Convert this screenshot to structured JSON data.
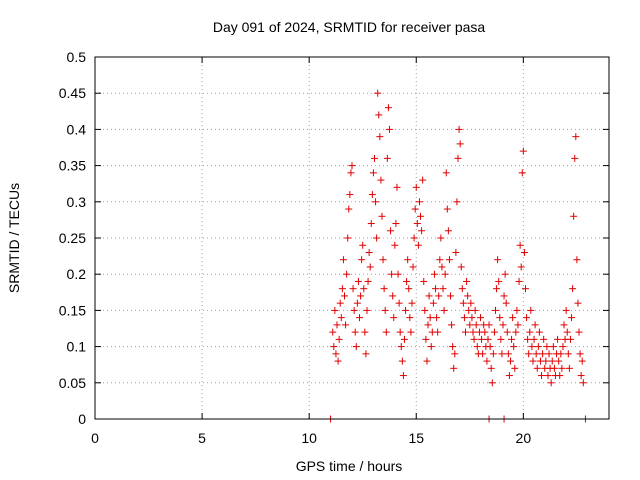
{
  "chart_data": {
    "type": "scatter",
    "title": "Day 091 of 2024, SRMTID for receiver pasa",
    "xlabel": "GPS time / hours",
    "ylabel": "SRMTID / TECUs",
    "xlim": [
      0,
      24
    ],
    "ylim": [
      0,
      0.5
    ],
    "xticks": [
      0,
      5,
      10,
      15,
      20
    ],
    "xtick_labels": [
      "0",
      "5",
      "10",
      "15",
      "20"
    ],
    "yticks": [
      0,
      0.05,
      0.1,
      0.15,
      0.2,
      0.25,
      0.3,
      0.35,
      0.4,
      0.45,
      0.5
    ],
    "ytick_labels": [
      "0",
      "0.05",
      "0.1",
      "0.15",
      "0.2",
      "0.25",
      "0.3",
      "0.35",
      "0.4",
      "0.45",
      "0.5"
    ],
    "grid": true,
    "marker": "+",
    "color": "#e00000",
    "series": [
      {
        "name": "SRMTID",
        "points": [
          [
            11.0,
            0.0
          ],
          [
            18.4,
            0.0
          ],
          [
            19.1,
            0.0
          ],
          [
            22.9,
            0.0
          ],
          [
            11.1,
            0.12
          ],
          [
            11.15,
            0.1
          ],
          [
            11.2,
            0.15
          ],
          [
            11.25,
            0.09
          ],
          [
            11.3,
            0.13
          ],
          [
            11.35,
            0.08
          ],
          [
            11.4,
            0.11
          ],
          [
            11.45,
            0.16
          ],
          [
            11.5,
            0.14
          ],
          [
            11.55,
            0.18
          ],
          [
            11.6,
            0.22
          ],
          [
            11.65,
            0.17
          ],
          [
            11.7,
            0.13
          ],
          [
            11.75,
            0.2
          ],
          [
            11.8,
            0.25
          ],
          [
            11.85,
            0.29
          ],
          [
            11.9,
            0.31
          ],
          [
            11.95,
            0.34
          ],
          [
            12.0,
            0.35
          ],
          [
            12.05,
            0.18
          ],
          [
            12.1,
            0.15
          ],
          [
            12.15,
            0.12
          ],
          [
            12.2,
            0.1
          ],
          [
            12.25,
            0.16
          ],
          [
            12.3,
            0.19
          ],
          [
            12.35,
            0.14
          ],
          [
            12.4,
            0.17
          ],
          [
            12.45,
            0.22
          ],
          [
            12.5,
            0.24
          ],
          [
            12.55,
            0.18
          ],
          [
            12.6,
            0.12
          ],
          [
            12.65,
            0.09
          ],
          [
            12.7,
            0.15
          ],
          [
            12.75,
            0.19
          ],
          [
            12.8,
            0.23
          ],
          [
            12.85,
            0.21
          ],
          [
            12.9,
            0.27
          ],
          [
            12.95,
            0.31
          ],
          [
            13.0,
            0.34
          ],
          [
            13.05,
            0.36
          ],
          [
            13.1,
            0.3
          ],
          [
            13.15,
            0.25
          ],
          [
            13.2,
            0.45
          ],
          [
            13.25,
            0.42
          ],
          [
            13.3,
            0.39
          ],
          [
            13.35,
            0.33
          ],
          [
            13.4,
            0.28
          ],
          [
            13.45,
            0.22
          ],
          [
            13.5,
            0.18
          ],
          [
            13.55,
            0.15
          ],
          [
            13.6,
            0.12
          ],
          [
            13.65,
            0.36
          ],
          [
            13.7,
            0.43
          ],
          [
            13.75,
            0.4
          ],
          [
            13.8,
            0.26
          ],
          [
            13.85,
            0.2
          ],
          [
            13.9,
            0.17
          ],
          [
            13.95,
            0.14
          ],
          [
            14.0,
            0.24
          ],
          [
            14.05,
            0.27
          ],
          [
            14.1,
            0.32
          ],
          [
            14.15,
            0.2
          ],
          [
            14.2,
            0.16
          ],
          [
            14.25,
            0.12
          ],
          [
            14.3,
            0.1
          ],
          [
            14.35,
            0.08
          ],
          [
            14.4,
            0.06
          ],
          [
            14.45,
            0.11
          ],
          [
            14.5,
            0.15
          ],
          [
            14.55,
            0.19
          ],
          [
            14.6,
            0.22
          ],
          [
            14.65,
            0.18
          ],
          [
            14.7,
            0.14
          ],
          [
            14.75,
            0.12
          ],
          [
            14.8,
            0.16
          ],
          [
            14.85,
            0.21
          ],
          [
            14.9,
            0.25
          ],
          [
            14.95,
            0.29
          ],
          [
            15.0,
            0.32
          ],
          [
            15.05,
            0.27
          ],
          [
            15.1,
            0.24
          ],
          [
            15.15,
            0.3
          ],
          [
            15.2,
            0.28
          ],
          [
            15.25,
            0.26
          ],
          [
            15.3,
            0.33
          ],
          [
            15.35,
            0.19
          ],
          [
            15.4,
            0.15
          ],
          [
            15.45,
            0.11
          ],
          [
            15.5,
            0.08
          ],
          [
            15.55,
            0.13
          ],
          [
            15.6,
            0.17
          ],
          [
            15.65,
            0.14
          ],
          [
            15.7,
            0.1
          ],
          [
            15.75,
            0.12
          ],
          [
            15.8,
            0.16
          ],
          [
            15.85,
            0.2
          ],
          [
            15.9,
            0.18
          ],
          [
            15.95,
            0.14
          ],
          [
            16.0,
            0.12
          ],
          [
            16.05,
            0.17
          ],
          [
            16.1,
            0.22
          ],
          [
            16.15,
            0.25
          ],
          [
            16.2,
            0.21
          ],
          [
            16.25,
            0.18
          ],
          [
            16.3,
            0.15
          ],
          [
            16.35,
            0.2
          ],
          [
            16.4,
            0.34
          ],
          [
            16.45,
            0.29
          ],
          [
            16.5,
            0.26
          ],
          [
            16.55,
            0.22
          ],
          [
            16.6,
            0.17
          ],
          [
            16.65,
            0.13
          ],
          [
            16.7,
            0.1
          ],
          [
            16.75,
            0.07
          ],
          [
            16.8,
            0.09
          ],
          [
            16.85,
            0.23
          ],
          [
            16.9,
            0.3
          ],
          [
            16.95,
            0.36
          ],
          [
            17.0,
            0.4
          ],
          [
            17.05,
            0.38
          ],
          [
            17.1,
            0.21
          ],
          [
            17.15,
            0.18
          ],
          [
            17.2,
            0.16
          ],
          [
            17.25,
            0.14
          ],
          [
            17.3,
            0.12
          ],
          [
            17.35,
            0.19
          ],
          [
            17.4,
            0.17
          ],
          [
            17.45,
            0.15
          ],
          [
            17.5,
            0.13
          ],
          [
            17.55,
            0.16
          ],
          [
            17.6,
            0.14
          ],
          [
            17.65,
            0.12
          ],
          [
            17.7,
            0.11
          ],
          [
            17.75,
            0.15
          ],
          [
            17.8,
            0.13
          ],
          [
            17.85,
            0.1
          ],
          [
            17.9,
            0.09
          ],
          [
            17.95,
            0.12
          ],
          [
            18.0,
            0.14
          ],
          [
            18.05,
            0.11
          ],
          [
            18.1,
            0.09
          ],
          [
            18.15,
            0.13
          ],
          [
            18.2,
            0.12
          ],
          [
            18.25,
            0.1
          ],
          [
            18.3,
            0.08
          ],
          [
            18.35,
            0.11
          ],
          [
            18.4,
            0.13
          ],
          [
            18.45,
            0.1
          ],
          [
            18.5,
            0.07
          ],
          [
            18.55,
            0.05
          ],
          [
            18.6,
            0.09
          ],
          [
            18.65,
            0.12
          ],
          [
            18.7,
            0.15
          ],
          [
            18.75,
            0.18
          ],
          [
            18.8,
            0.22
          ],
          [
            18.85,
            0.19
          ],
          [
            18.9,
            0.14
          ],
          [
            18.95,
            0.11
          ],
          [
            19.0,
            0.09
          ],
          [
            19.05,
            0.13
          ],
          [
            19.1,
            0.17
          ],
          [
            19.15,
            0.2
          ],
          [
            19.2,
            0.16
          ],
          [
            19.25,
            0.12
          ],
          [
            19.3,
            0.09
          ],
          [
            19.35,
            0.06
          ],
          [
            19.4,
            0.08
          ],
          [
            19.45,
            0.11
          ],
          [
            19.5,
            0.14
          ],
          [
            19.55,
            0.1
          ],
          [
            19.6,
            0.07
          ],
          [
            19.65,
            0.12
          ],
          [
            19.7,
            0.15
          ],
          [
            19.75,
            0.13
          ],
          [
            19.8,
            0.19
          ],
          [
            19.85,
            0.24
          ],
          [
            19.9,
            0.21
          ],
          [
            19.95,
            0.34
          ],
          [
            20.0,
            0.37
          ],
          [
            20.05,
            0.23
          ],
          [
            20.1,
            0.18
          ],
          [
            20.15,
            0.14
          ],
          [
            20.2,
            0.11
          ],
          [
            20.25,
            0.09
          ],
          [
            20.3,
            0.12
          ],
          [
            20.35,
            0.15
          ],
          [
            20.4,
            0.1
          ],
          [
            20.45,
            0.08
          ],
          [
            20.5,
            0.11
          ],
          [
            20.55,
            0.13
          ],
          [
            20.6,
            0.09
          ],
          [
            20.65,
            0.07
          ],
          [
            20.7,
            0.1
          ],
          [
            20.75,
            0.12
          ],
          [
            20.8,
            0.08
          ],
          [
            20.85,
            0.06
          ],
          [
            20.9,
            0.09
          ],
          [
            20.95,
            0.11
          ],
          [
            21.0,
            0.07
          ],
          [
            21.05,
            0.08
          ],
          [
            21.1,
            0.1
          ],
          [
            21.15,
            0.06
          ],
          [
            21.2,
            0.09
          ],
          [
            21.25,
            0.07
          ],
          [
            21.3,
            0.05
          ],
          [
            21.35,
            0.08
          ],
          [
            21.4,
            0.1
          ],
          [
            21.45,
            0.07
          ],
          [
            21.5,
            0.06
          ],
          [
            21.55,
            0.09
          ],
          [
            21.6,
            0.11
          ],
          [
            21.65,
            0.08
          ],
          [
            21.7,
            0.06
          ],
          [
            21.75,
            0.09
          ],
          [
            21.8,
            0.07
          ],
          [
            21.85,
            0.1
          ],
          [
            21.9,
            0.13
          ],
          [
            21.95,
            0.11
          ],
          [
            22.0,
            0.15
          ],
          [
            22.05,
            0.12
          ],
          [
            22.1,
            0.09
          ],
          [
            22.15,
            0.07
          ],
          [
            22.2,
            0.11
          ],
          [
            22.25,
            0.14
          ],
          [
            22.3,
            0.18
          ],
          [
            22.35,
            0.28
          ],
          [
            22.4,
            0.36
          ],
          [
            22.45,
            0.39
          ],
          [
            22.5,
            0.22
          ],
          [
            22.55,
            0.16
          ],
          [
            22.6,
            0.12
          ],
          [
            22.65,
            0.09
          ],
          [
            22.7,
            0.06
          ],
          [
            22.75,
            0.08
          ],
          [
            22.8,
            0.05
          ]
        ]
      }
    ]
  }
}
